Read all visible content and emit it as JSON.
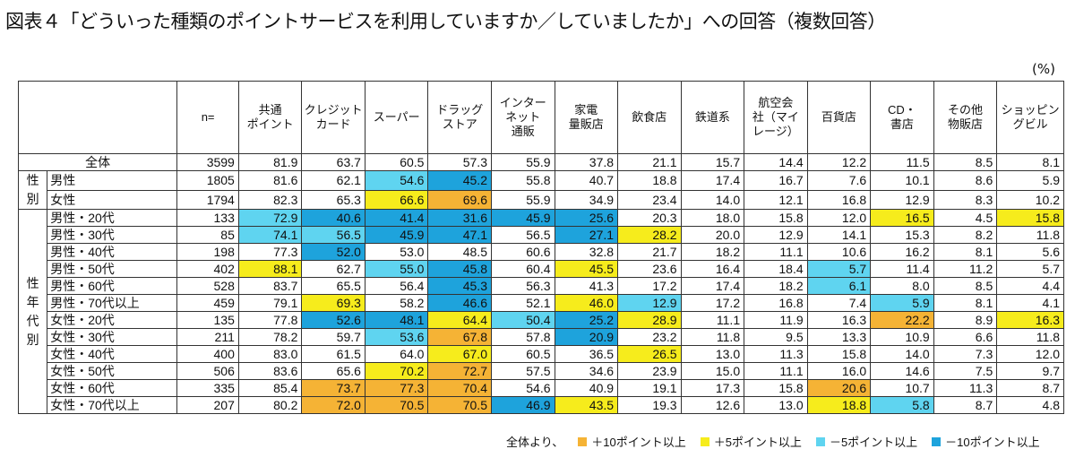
{
  "title": "図表４「どういった種類のポイントサービスを利用していますか／していましたか」への回答（複数回答）",
  "unit_label": "(%)",
  "legend": {
    "prefix": "全体より、",
    "items": [
      {
        "label": "＋10ポイント以上",
        "color": "#f5b335",
        "code": "p10"
      },
      {
        "label": "＋5ポイント以上",
        "color": "#f6ec1c",
        "code": "p5"
      },
      {
        "label": "－5ポイント以上",
        "color": "#5fd4f0",
        "code": "m5"
      },
      {
        "label": "－10ポイント以上",
        "color": "#1ea3dc",
        "code": "m10"
      }
    ]
  },
  "chart_data": {
    "type": "table",
    "columns": [
      "n=",
      "共通\nポイント",
      "クレジット\nカード",
      "スーパー",
      "ドラッグ\nストア",
      "インター\nネット\n通販",
      "家電\n量販店",
      "飲食店",
      "鉄道系",
      "航空会\n社（マイ\nレージ）",
      "百貨店",
      "CD・\n書店",
      "その他\n物販店",
      "ショッピン\nグビル"
    ],
    "groups": [
      {
        "label": "",
        "rows": [
          0
        ]
      },
      {
        "label": "性\n別",
        "rows": [
          1,
          2
        ]
      },
      {
        "label": "性\n年\n代\n別",
        "rows": [
          3,
          4,
          5,
          6,
          7,
          8,
          9,
          10,
          11,
          12,
          13,
          14
        ]
      }
    ],
    "rows": [
      {
        "label": "全体",
        "values": [
          3599,
          81.9,
          63.7,
          60.5,
          57.3,
          55.9,
          37.8,
          21.1,
          15.7,
          14.4,
          12.2,
          11.5,
          8.5,
          8.1
        ],
        "colors": [
          "",
          "",
          "",
          "",
          "",
          "",
          "",
          "",
          "",
          "",
          "",
          "",
          "",
          ""
        ]
      },
      {
        "label": "男性",
        "values": [
          1805,
          81.6,
          62.1,
          54.6,
          45.2,
          55.8,
          40.7,
          18.8,
          17.4,
          16.7,
          7.6,
          10.1,
          8.6,
          5.9
        ],
        "colors": [
          "",
          "",
          "",
          "m5",
          "m10",
          "",
          "",
          "",
          "",
          "",
          "",
          "",
          "",
          ""
        ]
      },
      {
        "label": "女性",
        "values": [
          1794,
          82.3,
          65.3,
          66.6,
          69.6,
          55.9,
          34.9,
          23.4,
          14.0,
          12.1,
          16.8,
          12.9,
          8.3,
          10.2
        ],
        "colors": [
          "",
          "",
          "",
          "p5",
          "p10",
          "",
          "",
          "",
          "",
          "",
          "",
          "",
          "",
          ""
        ]
      },
      {
        "label": "男性・20代",
        "values": [
          133,
          72.9,
          40.6,
          41.4,
          31.6,
          45.9,
          25.6,
          20.3,
          18.0,
          15.8,
          12.0,
          16.5,
          4.5,
          15.8
        ],
        "colors": [
          "",
          "m5",
          "m10",
          "m10",
          "m10",
          "m10",
          "m10",
          "",
          "",
          "",
          "",
          "p5",
          "",
          "p5"
        ]
      },
      {
        "label": "男性・30代",
        "values": [
          85,
          74.1,
          56.5,
          45.9,
          47.1,
          56.5,
          27.1,
          28.2,
          20.0,
          12.9,
          14.1,
          15.3,
          8.2,
          11.8
        ],
        "colors": [
          "",
          "m5",
          "m5",
          "m10",
          "m10",
          "",
          "m10",
          "p5",
          "",
          "",
          "",
          "",
          "",
          ""
        ]
      },
      {
        "label": "男性・40代",
        "values": [
          198,
          77.3,
          52.0,
          53.0,
          48.5,
          60.6,
          32.8,
          21.7,
          18.2,
          11.1,
          10.6,
          16.2,
          8.1,
          5.6
        ],
        "colors": [
          "",
          "",
          "m10",
          "",
          "",
          "",
          "",
          "",
          "",
          "",
          "",
          "",
          "",
          ""
        ]
      },
      {
        "label": "男性・50代",
        "values": [
          402,
          88.1,
          62.7,
          55.0,
          45.8,
          60.4,
          45.5,
          23.6,
          16.4,
          18.4,
          5.7,
          11.4,
          11.2,
          5.7
        ],
        "colors": [
          "",
          "p5",
          "",
          "m5",
          "m10",
          "",
          "p5",
          "",
          "",
          "",
          "m5",
          "",
          "",
          ""
        ]
      },
      {
        "label": "男性・60代",
        "values": [
          528,
          83.7,
          65.5,
          56.4,
          45.3,
          56.3,
          41.3,
          17.2,
          17.4,
          18.2,
          6.1,
          8.0,
          8.5,
          4.4
        ],
        "colors": [
          "",
          "",
          "",
          "",
          "m10",
          "",
          "",
          "",
          "",
          "",
          "m5",
          "",
          "",
          ""
        ]
      },
      {
        "label": "男性・70代以上",
        "values": [
          459,
          79.1,
          69.3,
          58.2,
          46.6,
          52.1,
          46.0,
          12.9,
          17.2,
          16.8,
          7.4,
          5.9,
          8.1,
          4.1
        ],
        "colors": [
          "",
          "",
          "p5",
          "",
          "m10",
          "",
          "p5",
          "m5",
          "",
          "",
          "",
          "m5",
          "",
          ""
        ]
      },
      {
        "label": "女性・20代",
        "values": [
          135,
          77.8,
          52.6,
          48.1,
          64.4,
          50.4,
          25.2,
          28.9,
          11.1,
          11.9,
          16.3,
          22.2,
          8.9,
          16.3
        ],
        "colors": [
          "",
          "",
          "m10",
          "m10",
          "p5",
          "m5",
          "m10",
          "p5",
          "",
          "",
          "",
          "p10",
          "",
          "p5"
        ]
      },
      {
        "label": "女性・30代",
        "values": [
          211,
          78.2,
          59.7,
          53.6,
          67.8,
          57.8,
          20.9,
          23.2,
          11.8,
          9.5,
          13.3,
          10.9,
          6.6,
          11.8
        ],
        "colors": [
          "",
          "",
          "",
          "m5",
          "p10",
          "",
          "m10",
          "",
          "",
          "",
          "",
          "",
          "",
          ""
        ]
      },
      {
        "label": "女性・40代",
        "values": [
          400,
          83.0,
          61.5,
          64.0,
          67.0,
          60.5,
          36.5,
          26.5,
          13.0,
          11.3,
          15.8,
          14.0,
          7.3,
          12.0
        ],
        "colors": [
          "",
          "",
          "",
          "",
          "p5",
          "",
          "",
          "p5",
          "",
          "",
          "",
          "",
          "",
          ""
        ]
      },
      {
        "label": "女性・50代",
        "values": [
          506,
          83.6,
          65.6,
          70.2,
          72.7,
          57.5,
          34.6,
          23.9,
          15.0,
          11.1,
          16.0,
          14.6,
          7.5,
          9.7
        ],
        "colors": [
          "",
          "",
          "",
          "p5",
          "p10",
          "",
          "",
          "",
          "",
          "",
          "",
          "",
          "",
          ""
        ]
      },
      {
        "label": "女性・60代",
        "values": [
          335,
          85.4,
          73.7,
          77.3,
          70.4,
          54.6,
          40.9,
          19.1,
          17.3,
          15.8,
          20.6,
          10.7,
          11.3,
          8.7
        ],
        "colors": [
          "",
          "",
          "p10",
          "p10",
          "p10",
          "",
          "",
          "",
          "",
          "",
          "p10",
          "",
          "",
          ""
        ]
      },
      {
        "label": "女性・70代以上",
        "values": [
          207,
          80.2,
          72.0,
          70.5,
          70.5,
          46.9,
          43.5,
          19.3,
          12.6,
          13.0,
          18.8,
          5.8,
          8.7,
          4.8
        ],
        "colors": [
          "",
          "",
          "p10",
          "p10",
          "p10",
          "m10",
          "p5",
          "",
          "",
          "",
          "p5",
          "m5",
          "",
          ""
        ]
      }
    ]
  }
}
